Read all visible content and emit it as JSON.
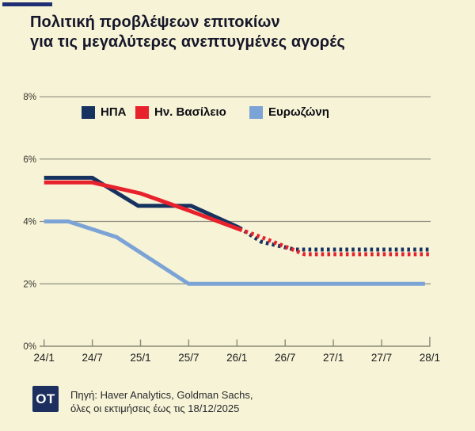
{
  "header": {
    "title_line1": "Πολιτική προβλέψεων επιτοκίων",
    "title_line2": "για τις μεγαλύτερες ανεπτυγμένες αγορές"
  },
  "colors": {
    "background": "#f6f3d6",
    "accent_bar": "#202e74",
    "usa": "#16325f",
    "uk": "#e8222c",
    "eurozone": "#7ca3d6",
    "gridline": "#8f8f80",
    "axis": "#8a8a7a",
    "logo_bg": "#1c2f5e"
  },
  "chart_data": {
    "type": "line",
    "title": "Πολιτική προβλέψεων επιτοκίων για τις μεγαλύτερες ανεπτυγμένες αγορές",
    "unit": "%",
    "ylim": [
      0,
      8
    ],
    "grid": "horizontal",
    "legend_position": "top-inside",
    "x_tick_labels": [
      "24/1",
      "24/7",
      "25/1",
      "25/7",
      "26/1",
      "26/7",
      "27/1",
      "27/7",
      "28/1"
    ],
    "y_ticks": [
      {
        "value": 0,
        "label": "0%"
      },
      {
        "value": 2,
        "label": "2%"
      },
      {
        "value": 4,
        "label": "4%"
      },
      {
        "value": 6,
        "label": "6%"
      },
      {
        "value": 8,
        "label": "8%"
      }
    ],
    "legend": [
      {
        "label": "ΗΠΑ",
        "color": "#16325f"
      },
      {
        "label": "Ην. Βασίλειο",
        "color": "#e8222c"
      },
      {
        "label": "Ευρωζώνη",
        "color": "#7ca3d6"
      }
    ],
    "series": [
      {
        "name": "Ευρωζώνη",
        "color": "#7ca3d6",
        "solid": [
          [
            0,
            4.0
          ],
          [
            0.5,
            4.0
          ],
          [
            1.5,
            3.5
          ],
          [
            3.0,
            2.0
          ],
          [
            7.9,
            2.0
          ]
        ],
        "dashed": []
      },
      {
        "name": "ΗΠΑ",
        "color": "#16325f",
        "solid": [
          [
            0,
            5.4
          ],
          [
            1,
            5.4
          ],
          [
            1.95,
            4.5
          ],
          [
            3.05,
            4.5
          ],
          [
            4.05,
            3.8
          ]
        ],
        "dashed": [
          [
            4.05,
            3.8
          ],
          [
            4.5,
            3.35
          ],
          [
            5.2,
            3.1
          ],
          [
            8,
            3.1
          ]
        ]
      },
      {
        "name": "Ην. Βασίλειο",
        "color": "#e8222c",
        "solid": [
          [
            0,
            5.25
          ],
          [
            1,
            5.25
          ],
          [
            2,
            4.9
          ],
          [
            3,
            4.35
          ],
          [
            4.05,
            3.75
          ]
        ],
        "dashed": [
          [
            4.05,
            3.75
          ],
          [
            4.5,
            3.5
          ],
          [
            5.4,
            2.95
          ],
          [
            8,
            2.95
          ]
        ]
      }
    ]
  },
  "footer": {
    "logo_text": "OT",
    "source_line1": "Πηγή: Haver Analytics, Goldman Sachs,",
    "source_line2": "όλες οι εκτιμήσεις έως τις 18/12/2025"
  }
}
